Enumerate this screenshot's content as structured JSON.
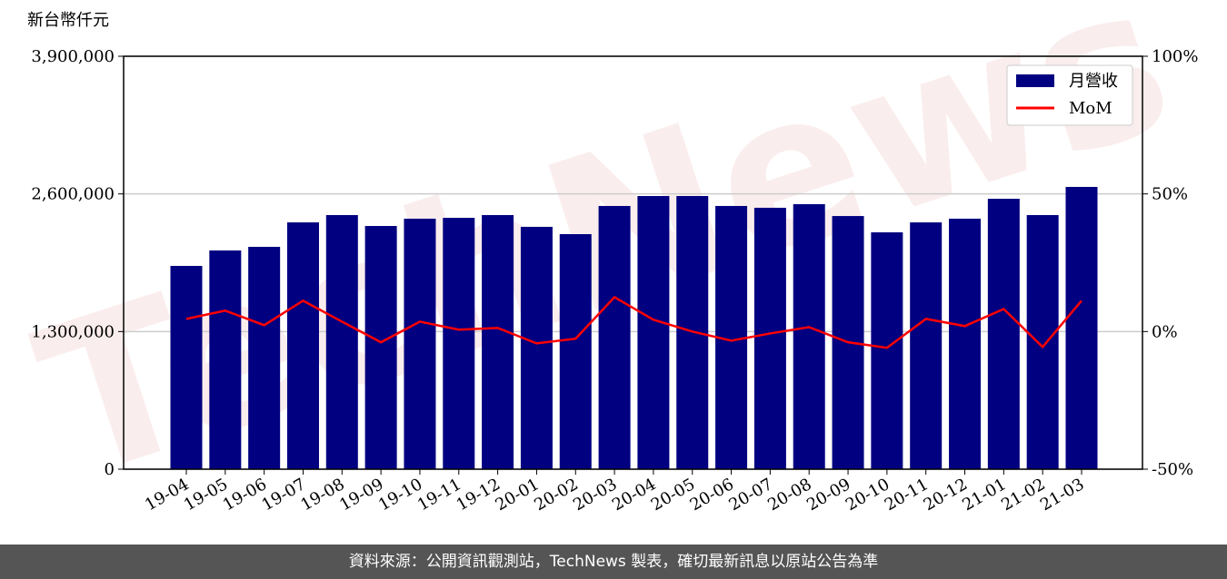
{
  "chart_data": {
    "type": "bar-line",
    "y_axis_label": "新台幣仟元",
    "watermark": "TechNews",
    "categories": [
      "19-04",
      "19-05",
      "19-06",
      "19-07",
      "19-08",
      "19-09",
      "19-10",
      "19-11",
      "19-12",
      "20-01",
      "20-02",
      "20-03",
      "20-04",
      "20-05",
      "20-06",
      "20-07",
      "20-08",
      "20-09",
      "20-10",
      "20-11",
      "20-12",
      "21-01",
      "21-02",
      "21-03"
    ],
    "series": [
      {
        "name": "月營收",
        "color": "#000080",
        "type": "bar",
        "values": [
          1920000,
          2066000,
          2100000,
          2331000,
          2400000,
          2297000,
          2366000,
          2374000,
          2400000,
          2289000,
          2220000,
          2486000,
          2580000,
          2580000,
          2486000,
          2469000,
          2503000,
          2391000,
          2237000,
          2331000,
          2366000,
          2554000,
          2400000,
          2666000
        ]
      },
      {
        "name": "MoM",
        "color": "#ff0000",
        "type": "line",
        "axis": "y2",
        "values": [
          4.6,
          7.6,
          2.3,
          11.2,
          3.6,
          -3.9,
          3.6,
          0.7,
          1.3,
          -4.3,
          -2.6,
          12.5,
          4.3,
          0,
          -3.3,
          -0.7,
          1.6,
          -3.9,
          -5.9,
          4.6,
          2.0,
          8.2,
          -5.6,
          11.2
        ]
      }
    ],
    "ylim": [
      0,
      3900000
    ],
    "yticks": [
      0,
      {
        "value": 1300000,
        "label": "1,300,000"
      },
      {
        "value": 2600000,
        "label": "2,600,000"
      },
      {
        "value": 3900000,
        "label": "3,900,000"
      }
    ],
    "y2lim": [
      -50,
      100
    ],
    "y2ticks": [
      {
        "value": -50,
        "label": "-50%"
      },
      {
        "value": 0,
        "label": "0%"
      },
      {
        "value": 50,
        "label": "50%"
      },
      {
        "value": 100,
        "label": "100%"
      }
    ],
    "grid": true,
    "legend": "upper right"
  },
  "footer": "資料來源：公開資訊觀測站，TechNews 製表，確切最新訊息以原站公告為準"
}
